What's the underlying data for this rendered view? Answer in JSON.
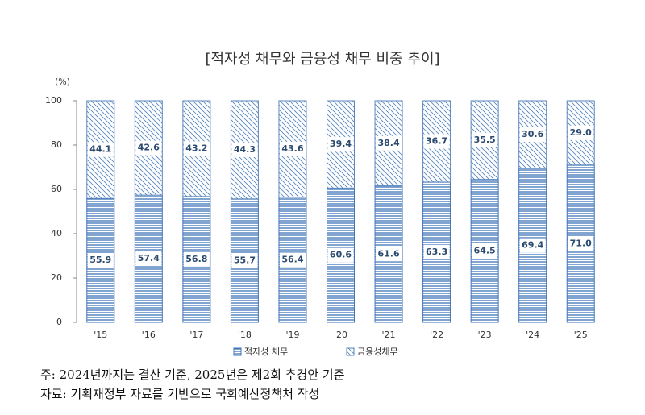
{
  "chart_data": {
    "type": "stacked_bar",
    "title": "[적자성 채무와 금융성 채무 비중 추이]",
    "y_unit": "(%)",
    "categories": [
      "'15",
      "'16",
      "'17",
      "'18",
      "'19",
      "'20",
      "'21",
      "'22",
      "'23",
      "'24",
      "'25"
    ],
    "series": [
      {
        "name": "적자성 채무",
        "color": "#3f74b8",
        "pattern": "horizontal",
        "values": [
          55.9,
          57.4,
          56.8,
          55.7,
          56.4,
          60.6,
          61.6,
          63.3,
          64.5,
          69.4,
          71.0
        ],
        "value_labels": [
          "55.9",
          "57.4",
          "56.8",
          "55.7",
          "56.4",
          "60.6",
          "61.6",
          "63.3",
          "64.5",
          "69.4",
          "71.0"
        ]
      },
      {
        "name": "금융성채무",
        "color": "#5a87c0",
        "pattern": "diagonal",
        "values": [
          44.1,
          42.6,
          43.2,
          44.3,
          43.6,
          39.4,
          38.4,
          36.7,
          35.5,
          30.6,
          29.0
        ],
        "value_labels": [
          "44.1",
          "42.6",
          "43.2",
          "44.3",
          "43.6",
          "39.4",
          "38.4",
          "36.7",
          "35.5",
          "30.6",
          "29.0"
        ]
      }
    ],
    "ylim": [
      0,
      100
    ],
    "yticks": [
      0,
      20,
      40,
      60,
      80,
      100
    ],
    "grid": false,
    "legend": "bottom",
    "notes": [
      "주: 2024년까지는 결산 기준, 2025년은 제2회 추경안 기준",
      "자료: 기획재정부 자료를 기반으로 국회예산정책처 작성"
    ]
  }
}
